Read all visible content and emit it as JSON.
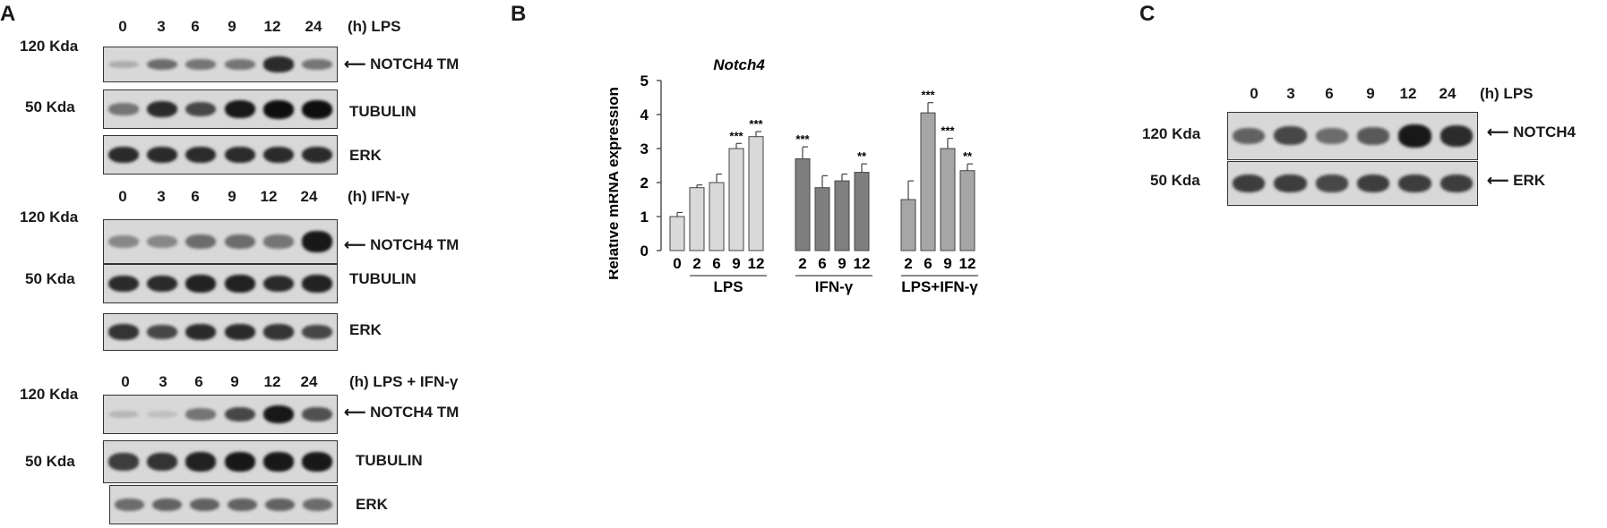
{
  "panels": {
    "A": {
      "letter": "A",
      "blocks": [
        {
          "condition": "(h) LPS",
          "lanes": [
            "0",
            "3",
            "6",
            "9",
            "12",
            "24"
          ],
          "rows": [
            {
              "mw": "120 Kda",
              "label": "NOTCH4 TM",
              "arrow": true,
              "intensity": [
                0.15,
                0.5,
                0.45,
                0.45,
                0.85,
                0.45
              ]
            },
            {
              "mw": "50 Kda",
              "label": "TUBULIN",
              "arrow": false,
              "intensity": [
                0.45,
                0.85,
                0.7,
                0.95,
                1.0,
                1.0
              ]
            },
            {
              "mw": "",
              "label": "ERK",
              "arrow": false,
              "intensity": [
                0.85,
                0.85,
                0.85,
                0.85,
                0.85,
                0.85
              ]
            }
          ]
        },
        {
          "condition": "(h) IFN-γ",
          "lanes": [
            "0",
            "3",
            "6",
            "9",
            "12",
            "24"
          ],
          "rows": [
            {
              "mw": "120 Kda",
              "label": "NOTCH4 TM",
              "arrow": true,
              "intensity": [
                0.35,
                0.35,
                0.5,
                0.5,
                0.45,
                0.95
              ]
            },
            {
              "mw": "50 Kda",
              "label": "TUBULIN",
              "arrow": false,
              "intensity": [
                0.85,
                0.85,
                0.9,
                0.9,
                0.85,
                0.9
              ]
            },
            {
              "mw": "",
              "label": "ERK",
              "arrow": false,
              "intensity": [
                0.8,
                0.7,
                0.85,
                0.85,
                0.8,
                0.7
              ]
            }
          ]
        },
        {
          "condition": "(h)   LPS + IFN-γ",
          "lanes": [
            "0",
            "3",
            "6",
            "9",
            "12",
            "24"
          ],
          "rows": [
            {
              "mw": "120 Kda",
              "label": "NOTCH4 TM",
              "arrow": true,
              "intensity": [
                0.1,
                0.05,
                0.45,
                0.7,
                0.95,
                0.65
              ]
            },
            {
              "mw": "50 Kda",
              "label": "TUBULIN",
              "arrow": false,
              "intensity": [
                0.75,
                0.8,
                0.9,
                0.95,
                0.95,
                0.95
              ]
            },
            {
              "mw": "",
              "label": "ERK",
              "arrow": false,
              "intensity": [
                0.5,
                0.55,
                0.55,
                0.55,
                0.55,
                0.5
              ]
            }
          ]
        }
      ]
    },
    "B": {
      "letter": "B",
      "chart_data": {
        "type": "bar",
        "title": "Notch4",
        "ylabel": "Relative mRNA expression",
        "xlabel": "",
        "ylim": [
          0,
          5
        ],
        "yticks": [
          "0",
          "1",
          "2",
          "3",
          "4",
          "5"
        ],
        "groups": [
          {
            "name": "LPS",
            "color": "#d9d9d9",
            "categories": [
              "0",
              "2",
              "6",
              "9",
              "12"
            ],
            "values": [
              1.0,
              1.85,
              2.0,
              3.0,
              3.35
            ],
            "errors": [
              0.12,
              0.08,
              0.25,
              0.15,
              0.15
            ],
            "sig": [
              "",
              "",
              "",
              "***",
              "***"
            ]
          },
          {
            "name": "IFN-γ",
            "color": "#7f7f7f",
            "categories": [
              "2",
              "6",
              "9",
              "12"
            ],
            "values": [
              2.7,
              1.85,
              2.05,
              2.3
            ],
            "errors": [
              0.35,
              0.35,
              0.2,
              0.25
            ],
            "sig": [
              "***",
              "",
              "",
              "**"
            ]
          },
          {
            "name": "LPS+IFN-γ",
            "color": "#a6a6a6",
            "categories": [
              "2",
              "6",
              "9",
              "12"
            ],
            "values": [
              1.5,
              4.05,
              3.0,
              2.35
            ],
            "errors": [
              0.55,
              0.3,
              0.3,
              0.2
            ],
            "sig": [
              "",
              "***",
              "***",
              "**"
            ]
          }
        ]
      }
    },
    "C": {
      "letter": "C",
      "condition": "(h) LPS",
      "lanes": [
        "0",
        "3",
        "6",
        "9",
        "12",
        "24"
      ],
      "rows": [
        {
          "mw": "120 Kda",
          "label": "NOTCH4",
          "arrow": true,
          "intensity": [
            0.55,
            0.7,
            0.5,
            0.6,
            0.95,
            0.85
          ]
        },
        {
          "mw": "50 Kda",
          "label": "ERK",
          "arrow": true,
          "intensity": [
            0.75,
            0.75,
            0.7,
            0.75,
            0.75,
            0.75
          ]
        }
      ]
    }
  }
}
